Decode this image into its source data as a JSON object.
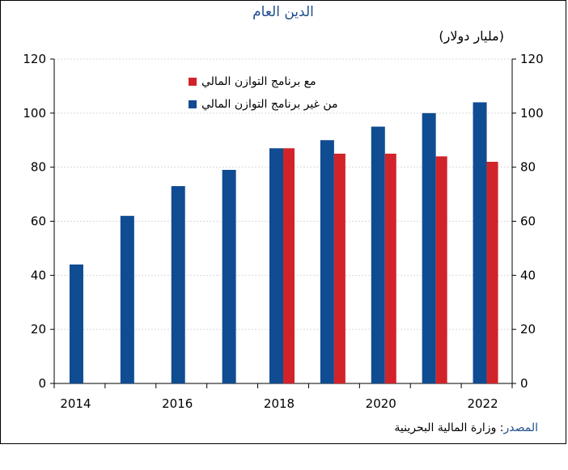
{
  "chart_data": {
    "type": "bar",
    "title": "الدين العام",
    "unit_label": "(مليار دولار)",
    "x": [
      2014,
      2015,
      2016,
      2017,
      2018,
      2019,
      2020,
      2021,
      2022
    ],
    "x_tick_labels": [
      "2014",
      "2016",
      "2018",
      "2020",
      "2022"
    ],
    "series": [
      {
        "name": "من غير برنامج التوازن المالي",
        "color": "#0f4c92",
        "values": [
          44,
          62,
          73,
          79,
          87,
          90,
          95,
          100,
          104
        ]
      },
      {
        "name": "مع برنامج التوازن المالي",
        "color": "#d2232a",
        "values": [
          null,
          null,
          null,
          null,
          87,
          85,
          85,
          84,
          82
        ]
      }
    ],
    "ylim": [
      0,
      120
    ],
    "yticks": [
      0,
      20,
      40,
      60,
      80,
      100,
      120
    ],
    "grid": true,
    "legend_position": "top-left",
    "dual_y_axis": true
  },
  "source": {
    "label": "المصدر",
    "text": ": وزارة المالية البحرينية"
  }
}
